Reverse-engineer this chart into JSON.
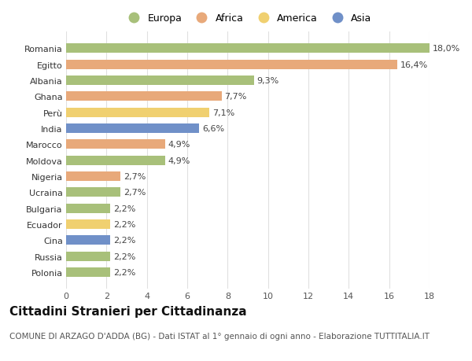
{
  "categories": [
    "Polonia",
    "Russia",
    "Cina",
    "Ecuador",
    "Bulgaria",
    "Ucraina",
    "Nigeria",
    "Moldova",
    "Marocco",
    "India",
    "Perù",
    "Ghana",
    "Albania",
    "Egitto",
    "Romania"
  ],
  "values": [
    2.2,
    2.2,
    2.2,
    2.2,
    2.2,
    2.7,
    2.7,
    4.9,
    4.9,
    6.6,
    7.1,
    7.7,
    9.3,
    16.4,
    18.0
  ],
  "continents": [
    "Europa",
    "Europa",
    "Asia",
    "America",
    "Europa",
    "Europa",
    "Africa",
    "Europa",
    "Africa",
    "Asia",
    "America",
    "Africa",
    "Europa",
    "Africa",
    "Europa"
  ],
  "labels": [
    "2,2%",
    "2,2%",
    "2,2%",
    "2,2%",
    "2,2%",
    "2,7%",
    "2,7%",
    "4,9%",
    "4,9%",
    "6,6%",
    "7,1%",
    "7,7%",
    "9,3%",
    "16,4%",
    "18,0%"
  ],
  "continent_colors": {
    "Europa": "#a8c07a",
    "Africa": "#e8a97a",
    "America": "#f0d070",
    "Asia": "#7090c8"
  },
  "legend_order": [
    "Europa",
    "Africa",
    "America",
    "Asia"
  ],
  "background_color": "#ffffff",
  "grid_color": "#e0e0e0",
  "xlim": [
    0,
    18
  ],
  "xticks": [
    0,
    2,
    4,
    6,
    8,
    10,
    12,
    14,
    16,
    18
  ],
  "title": "Cittadini Stranieri per Cittadinanza",
  "subtitle": "COMUNE DI ARZAGO D'ADDA (BG) - Dati ISTAT al 1° gennaio di ogni anno - Elaborazione TUTTITALIA.IT",
  "bar_height": 0.6,
  "label_fontsize": 8,
  "tick_fontsize": 8,
  "title_fontsize": 11,
  "subtitle_fontsize": 7.5
}
